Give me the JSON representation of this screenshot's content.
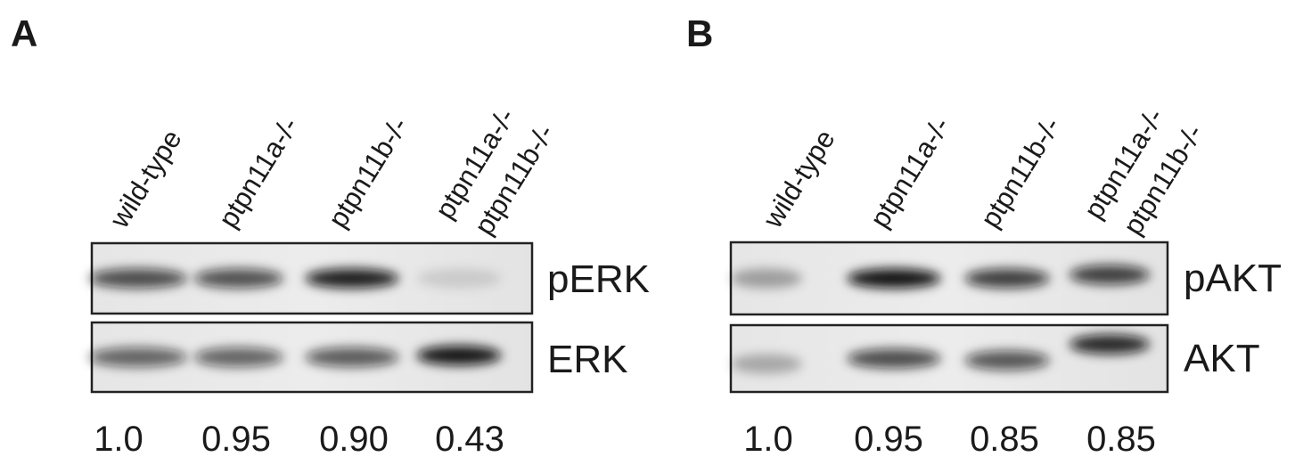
{
  "panels": [
    {
      "label": "A",
      "lanes": [
        [
          "wild-type"
        ],
        [
          "ptpn11a-/-"
        ],
        [
          "ptpn11b-/-"
        ],
        [
          "ptpn11a-/-",
          "ptpn11b-/-"
        ]
      ],
      "blots": [
        "pERK",
        "ERK"
      ],
      "ratios": [
        "1.0",
        "0.95",
        "0.90",
        "0.43"
      ]
    },
    {
      "label": "B",
      "lanes": [
        [
          "wild-type"
        ],
        [
          "ptpn11a-/-"
        ],
        [
          "ptpn11b-/-"
        ],
        [
          "ptpn11a-/-",
          "ptpn11b-/-"
        ]
      ],
      "blots": [
        "pAKT",
        "AKT"
      ],
      "ratios": [
        "1.0",
        "0.95",
        "0.85",
        "0.85"
      ]
    }
  ]
}
